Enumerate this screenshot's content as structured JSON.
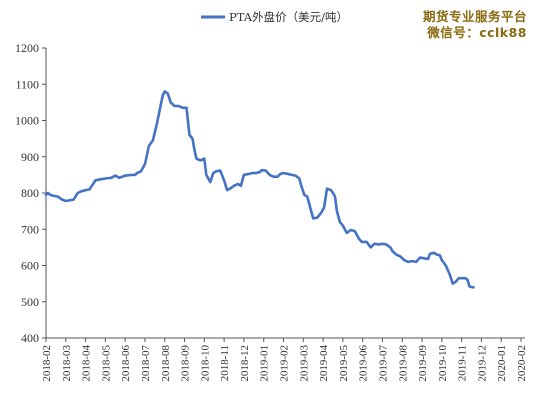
{
  "watermark": {
    "line1": "期货专业服务平台",
    "line2": "微信号：cclk88"
  },
  "chart_data": {
    "type": "line",
    "title": "",
    "xlabel": "",
    "ylabel": "",
    "ylim": [
      400,
      1200
    ],
    "yticks": [
      400,
      500,
      600,
      700,
      800,
      900,
      1000,
      1100,
      1200
    ],
    "x_tick_labels": [
      "2018-02",
      "2018-03",
      "2018-04",
      "2018-05",
      "2018-06",
      "2018-07",
      "2018-08",
      "2018-09",
      "2018-10",
      "2018-11",
      "2018-12",
      "2019-01",
      "2019-02",
      "2019-03",
      "2019-04",
      "2019-05",
      "2019-06",
      "2019-07",
      "2019-08",
      "2019-09",
      "2019-10",
      "2019-11",
      "2019-12",
      "2020-01",
      "2020-02"
    ],
    "legend_position": "top-center",
    "grid": false,
    "line_color": "#4472c4",
    "series": [
      {
        "name": "PTA外盘价（美元/吨）",
        "points": [
          [
            0,
            795
          ],
          [
            0.1,
            800
          ],
          [
            0.2,
            795
          ],
          [
            0.4,
            792
          ],
          [
            0.6,
            790
          ],
          [
            0.8,
            782
          ],
          [
            1.0,
            778
          ],
          [
            1.2,
            780
          ],
          [
            1.4,
            782
          ],
          [
            1.6,
            800
          ],
          [
            1.8,
            805
          ],
          [
            2.0,
            808
          ],
          [
            2.2,
            810
          ],
          [
            2.5,
            835
          ],
          [
            2.8,
            838
          ],
          [
            3.0,
            840
          ],
          [
            3.3,
            842
          ],
          [
            3.5,
            848
          ],
          [
            3.7,
            842
          ],
          [
            4.0,
            848
          ],
          [
            4.3,
            850
          ],
          [
            4.5,
            850
          ],
          [
            4.6,
            855
          ],
          [
            4.8,
            860
          ],
          [
            5.0,
            880
          ],
          [
            5.2,
            930
          ],
          [
            5.4,
            945
          ],
          [
            5.6,
            990
          ],
          [
            5.75,
            1030
          ],
          [
            5.9,
            1070
          ],
          [
            6.0,
            1080
          ],
          [
            6.15,
            1075
          ],
          [
            6.3,
            1050
          ],
          [
            6.5,
            1040
          ],
          [
            6.7,
            1040
          ],
          [
            6.9,
            1035
          ],
          [
            7.1,
            1035
          ],
          [
            7.25,
            960
          ],
          [
            7.4,
            950
          ],
          [
            7.5,
            920
          ],
          [
            7.6,
            895
          ],
          [
            7.8,
            890
          ],
          [
            8.0,
            895
          ],
          [
            8.1,
            850
          ],
          [
            8.3,
            830
          ],
          [
            8.45,
            855
          ],
          [
            8.6,
            860
          ],
          [
            8.8,
            862
          ],
          [
            9.0,
            835
          ],
          [
            9.15,
            808
          ],
          [
            9.3,
            812
          ],
          [
            9.5,
            820
          ],
          [
            9.7,
            825
          ],
          [
            9.85,
            820
          ],
          [
            10.0,
            850
          ],
          [
            10.2,
            852
          ],
          [
            10.4,
            855
          ],
          [
            10.6,
            855
          ],
          [
            10.8,
            858
          ],
          [
            10.9,
            863
          ],
          [
            11.1,
            862
          ],
          [
            11.3,
            850
          ],
          [
            11.5,
            845
          ],
          [
            11.7,
            845
          ],
          [
            11.85,
            853
          ],
          [
            12.0,
            855
          ],
          [
            12.2,
            853
          ],
          [
            12.4,
            850
          ],
          [
            12.6,
            848
          ],
          [
            12.8,
            840
          ],
          [
            12.9,
            820
          ],
          [
            13.05,
            795
          ],
          [
            13.2,
            790
          ],
          [
            13.35,
            760
          ],
          [
            13.5,
            730
          ],
          [
            13.7,
            732
          ],
          [
            13.9,
            745
          ],
          [
            14.05,
            760
          ],
          [
            14.2,
            812
          ],
          [
            14.4,
            808
          ],
          [
            14.5,
            800
          ],
          [
            14.6,
            790
          ],
          [
            14.7,
            750
          ],
          [
            14.85,
            720
          ],
          [
            15.0,
            710
          ],
          [
            15.2,
            690
          ],
          [
            15.4,
            698
          ],
          [
            15.6,
            695
          ],
          [
            15.8,
            675
          ],
          [
            15.95,
            665
          ],
          [
            16.2,
            665
          ],
          [
            16.4,
            650
          ],
          [
            16.6,
            660
          ],
          [
            16.8,
            658
          ],
          [
            17.0,
            660
          ],
          [
            17.2,
            658
          ],
          [
            17.4,
            650
          ],
          [
            17.5,
            640
          ],
          [
            17.7,
            630
          ],
          [
            17.9,
            625
          ],
          [
            18.1,
            615
          ],
          [
            18.3,
            610
          ],
          [
            18.5,
            612
          ],
          [
            18.7,
            610
          ],
          [
            18.9,
            622
          ],
          [
            19.1,
            620
          ],
          [
            19.3,
            618
          ],
          [
            19.4,
            632
          ],
          [
            19.6,
            635
          ],
          [
            19.75,
            630
          ],
          [
            19.9,
            628
          ],
          [
            20.0,
            615
          ],
          [
            20.2,
            600
          ],
          [
            20.4,
            575
          ],
          [
            20.55,
            550
          ],
          [
            20.7,
            555
          ],
          [
            20.85,
            565
          ],
          [
            21.0,
            565
          ],
          [
            21.2,
            565
          ],
          [
            21.3,
            560
          ],
          [
            21.4,
            542
          ],
          [
            21.55,
            540
          ],
          [
            21.6,
            540
          ]
        ]
      }
    ]
  }
}
